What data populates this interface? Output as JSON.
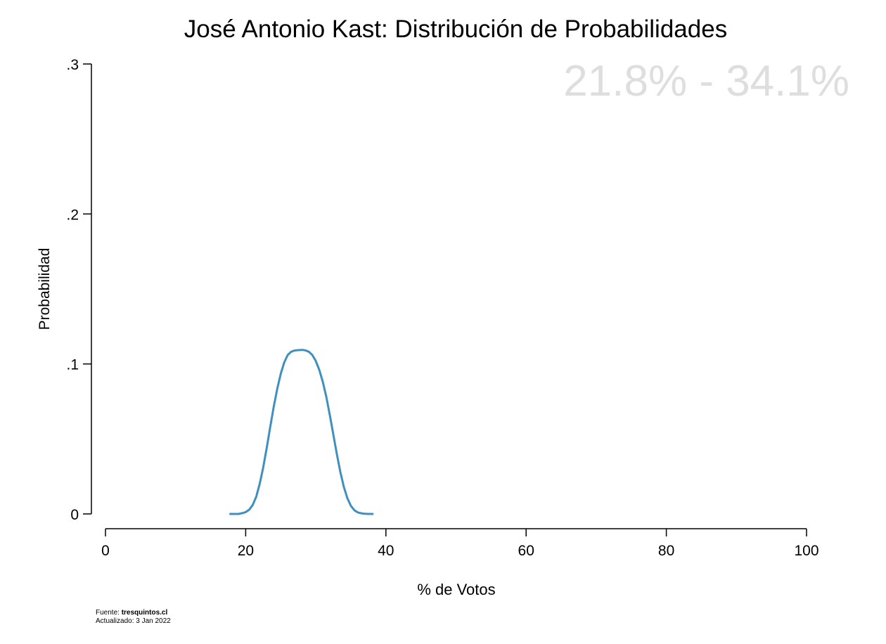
{
  "chart_data": {
    "type": "line",
    "title": "José Antonio Kast: Distribución de Probabilidades",
    "annotation": "21.8% - 34.1%",
    "annotation_color": "#dedede",
    "xlabel": "% de Votos",
    "ylabel": "Probabilidad",
    "xlim": [
      0,
      100
    ],
    "ylim": [
      0,
      0.3
    ],
    "x_ticks": [
      0,
      20,
      40,
      60,
      80,
      100
    ],
    "x_tick_labels": [
      "0",
      "20",
      "40",
      "60",
      "80",
      "100"
    ],
    "y_ticks": [
      0,
      0.1,
      0.2,
      0.3
    ],
    "y_tick_labels": [
      "0",
      ".1",
      ".2",
      ".3"
    ],
    "grid": false,
    "series": [
      {
        "color": "#3f8fbf",
        "x": [
          17.8,
          18.5,
          19.0,
          19.5,
          20.0,
          20.5,
          21.0,
          21.5,
          22.0,
          22.5,
          23.0,
          23.5,
          24.0,
          24.5,
          25.0,
          25.5,
          26.0,
          26.5,
          27.0,
          27.5,
          28.0,
          28.2,
          28.5,
          29.0,
          29.5,
          30.0,
          30.5,
          31.0,
          31.5,
          32.0,
          32.5,
          33.0,
          33.5,
          34.0,
          34.5,
          35.0,
          35.5,
          36.0,
          36.5,
          37.0,
          37.5,
          38.1
        ],
        "y": [
          0.0,
          0.0,
          0.0,
          0.0005,
          0.0012,
          0.0028,
          0.006,
          0.0115,
          0.02,
          0.031,
          0.044,
          0.058,
          0.0715,
          0.0835,
          0.0935,
          0.101,
          0.106,
          0.1082,
          0.109,
          0.1092,
          0.1093,
          0.1093,
          0.1091,
          0.1082,
          0.106,
          0.102,
          0.096,
          0.088,
          0.078,
          0.066,
          0.053,
          0.04,
          0.028,
          0.018,
          0.0105,
          0.0055,
          0.0025,
          0.001,
          0.0004,
          0.0001,
          0.0,
          0.0
        ]
      }
    ]
  },
  "footer": {
    "source_label": "Fuente: ",
    "source_value": "tresquintos.cl",
    "updated": "Actualizado: 3 Jan 2022"
  }
}
